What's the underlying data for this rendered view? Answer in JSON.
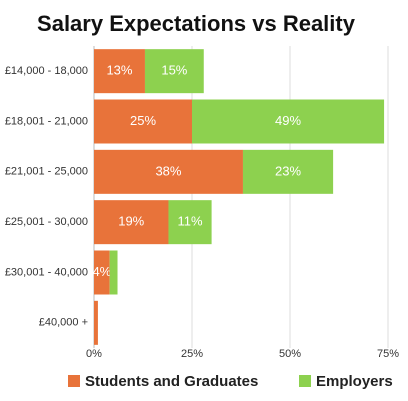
{
  "chart_data": {
    "type": "stacked-barh",
    "title": "Salary Expectations vs Reality",
    "categories": [
      "£14,000 - 18,000",
      "£18,001 - 21,000",
      "£21,001 - 25,000",
      "£25,001 - 30,000",
      "£30,001 - 40,000",
      "£40,000 +"
    ],
    "series": [
      {
        "name": "Students and Graduates",
        "color": "#e8733a",
        "values": [
          13,
          25,
          38,
          19,
          4,
          1
        ],
        "value_labels": [
          "13%",
          "25%",
          "38%",
          "19%",
          "4%",
          null
        ]
      },
      {
        "name": "Employers",
        "color": "#8dd14f",
        "values": [
          15,
          49,
          23,
          11,
          2,
          0
        ],
        "value_labels": [
          "15%",
          "49%",
          "23%",
          "11%",
          null,
          null
        ]
      }
    ],
    "xlim": [
      0,
      75
    ],
    "xticks": [
      {
        "value": 0,
        "label": "0%"
      },
      {
        "value": 25,
        "label": "25%"
      },
      {
        "value": 50,
        "label": "50%"
      },
      {
        "value": 75,
        "label": "75%"
      }
    ],
    "grid": true
  }
}
